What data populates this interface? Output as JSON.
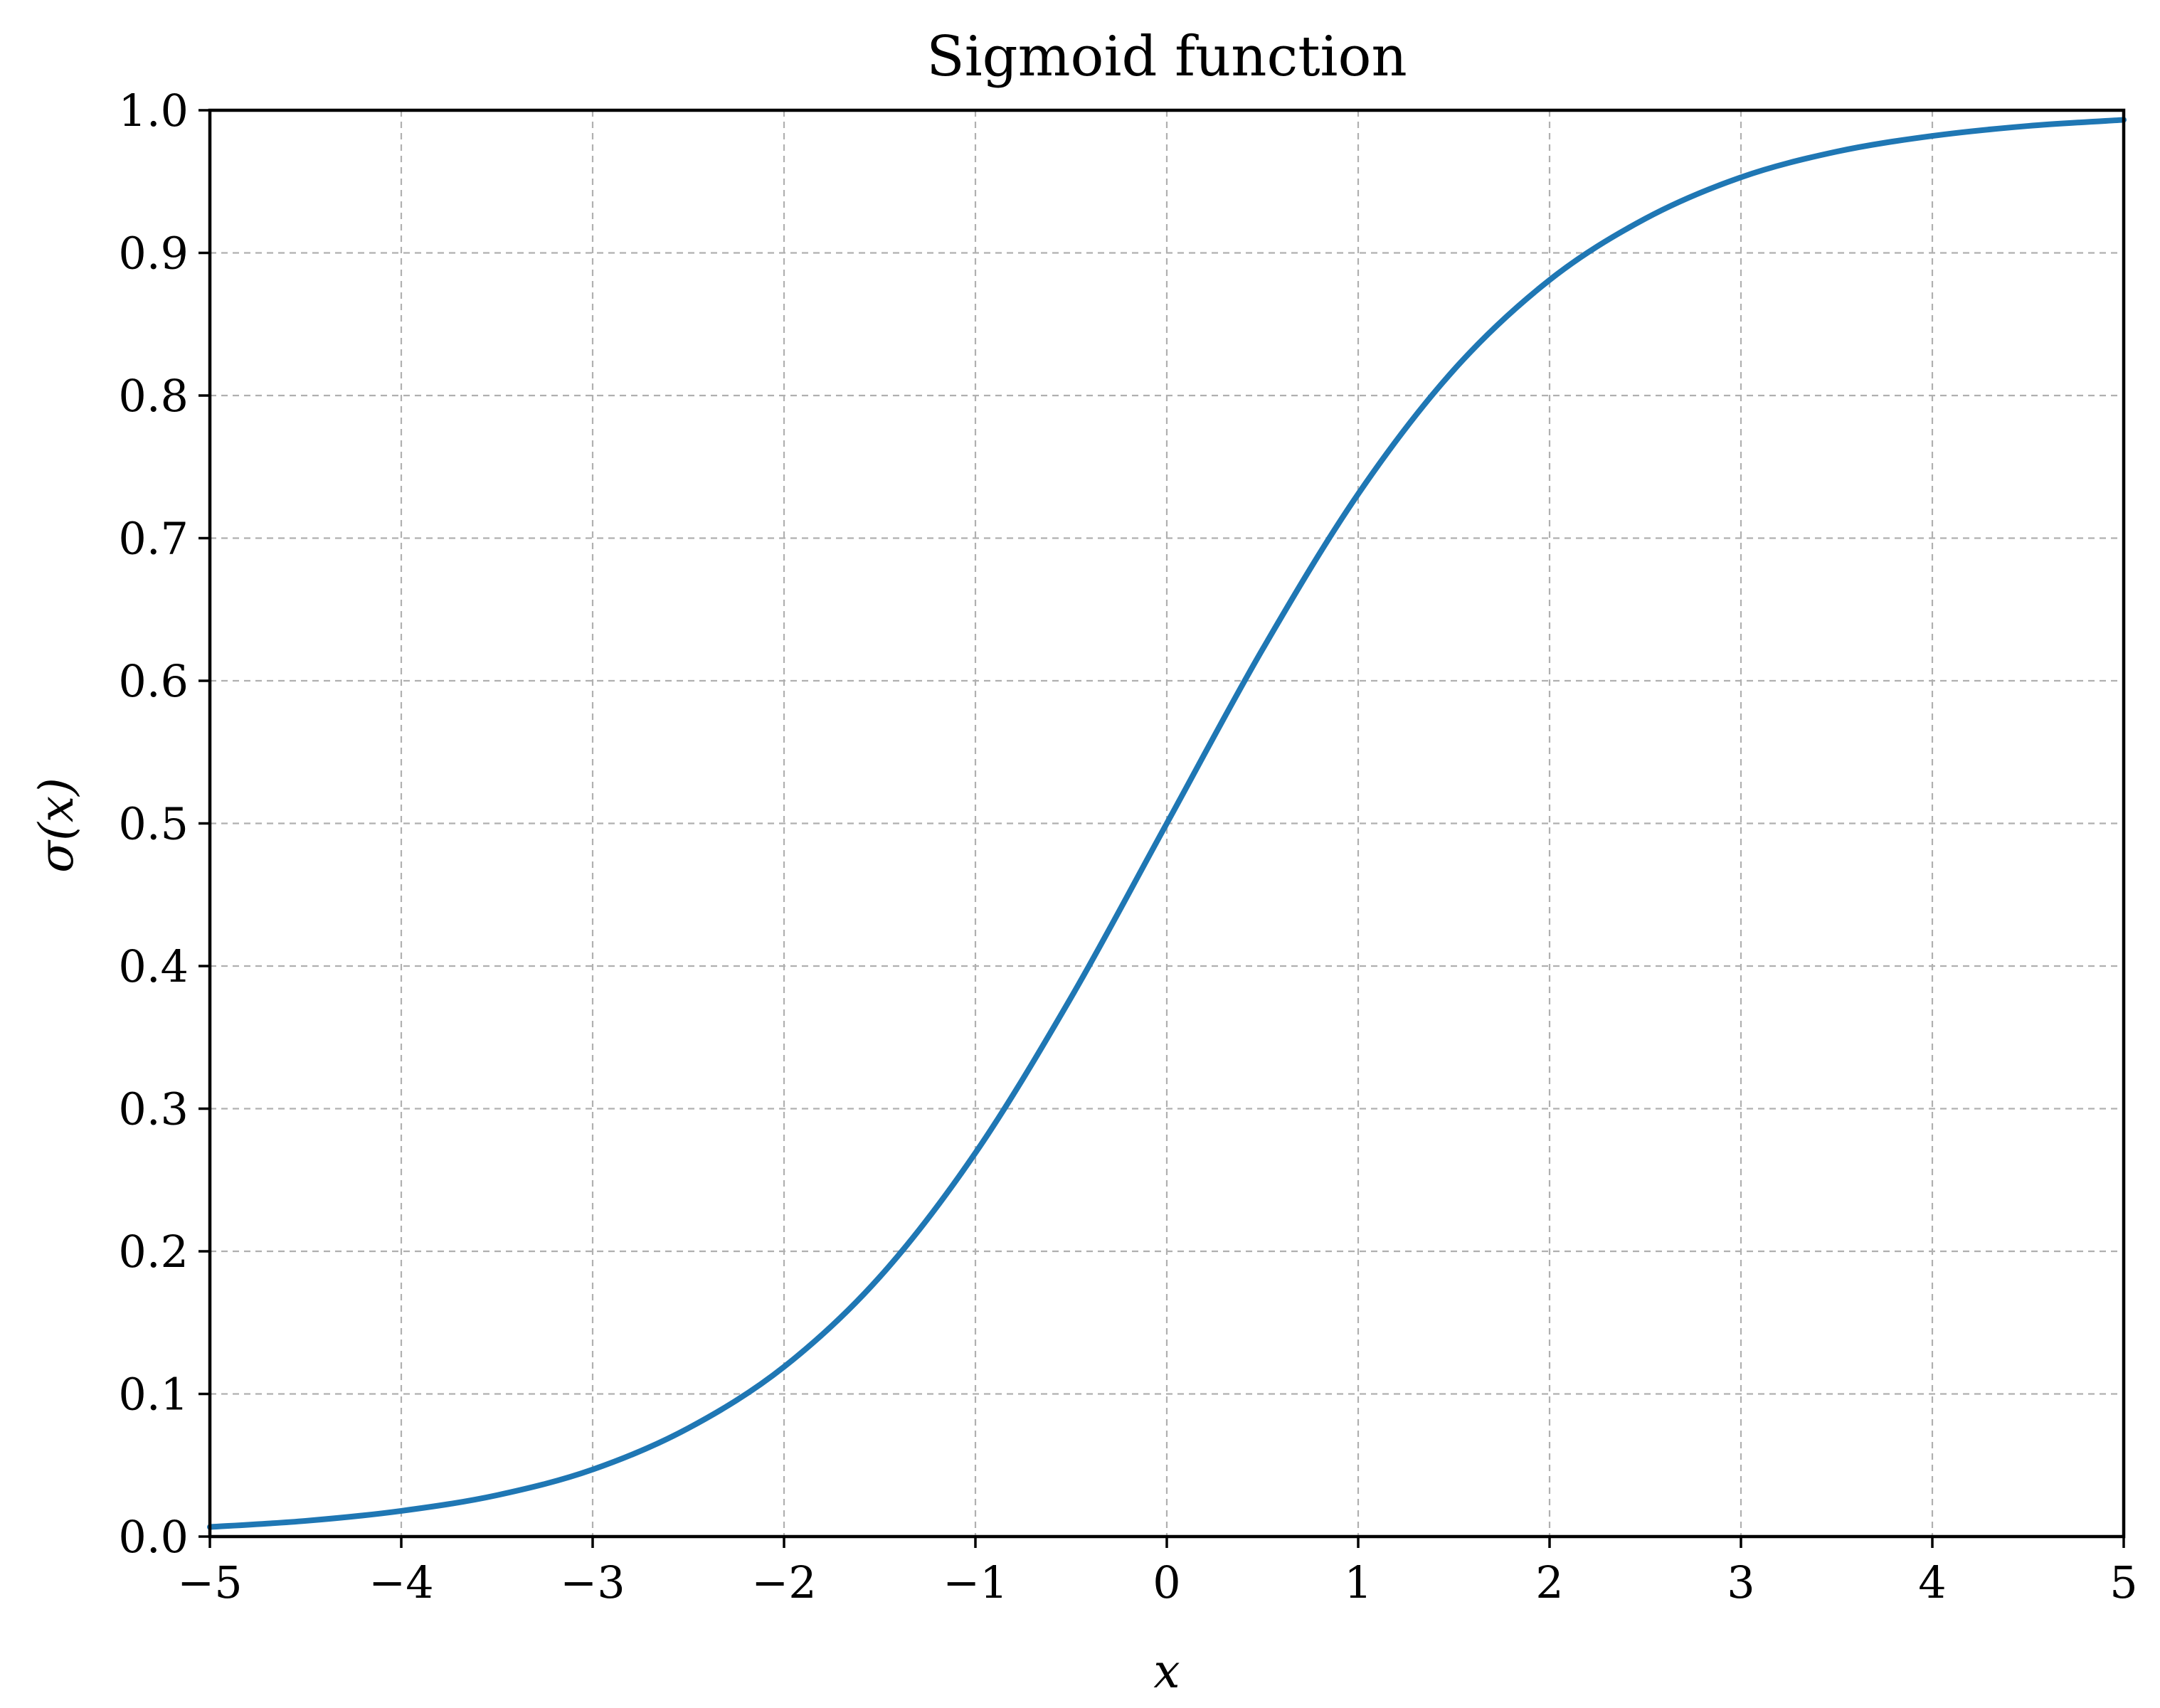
{
  "chart_data": {
    "type": "line",
    "title": "Sigmoid function",
    "xlabel": "x",
    "ylabel": "σ(x)",
    "xlim": [
      -5,
      5
    ],
    "ylim": [
      0.0,
      1.0
    ],
    "xticks": [
      -5,
      -4,
      -3,
      -2,
      -1,
      0,
      1,
      2,
      3,
      4,
      5
    ],
    "xtick_labels": [
      "−5",
      "−4",
      "−3",
      "−2",
      "−1",
      "0",
      "1",
      "2",
      "3",
      "4",
      "5"
    ],
    "yticks": [
      0.0,
      0.1,
      0.2,
      0.3,
      0.4,
      0.5,
      0.6,
      0.7,
      0.8,
      0.9,
      1.0
    ],
    "ytick_labels": [
      "0.0",
      "0.1",
      "0.2",
      "0.3",
      "0.4",
      "0.5",
      "0.6",
      "0.7",
      "0.8",
      "0.9",
      "1.0"
    ],
    "grid": true,
    "series": [
      {
        "color": "#1f77b4",
        "x": [
          -5,
          -4.5,
          -4,
          -3.5,
          -3,
          -2.5,
          -2,
          -1.5,
          -1,
          -0.5,
          0,
          0.5,
          1,
          1.5,
          2,
          2.5,
          3,
          3.5,
          4,
          4.5,
          5
        ],
        "y": [
          0.0067,
          0.011,
          0.018,
          0.029,
          0.047,
          0.076,
          0.119,
          0.182,
          0.269,
          0.378,
          0.5,
          0.622,
          0.731,
          0.818,
          0.881,
          0.924,
          0.953,
          0.971,
          0.982,
          0.989,
          0.9933
        ]
      }
    ]
  }
}
